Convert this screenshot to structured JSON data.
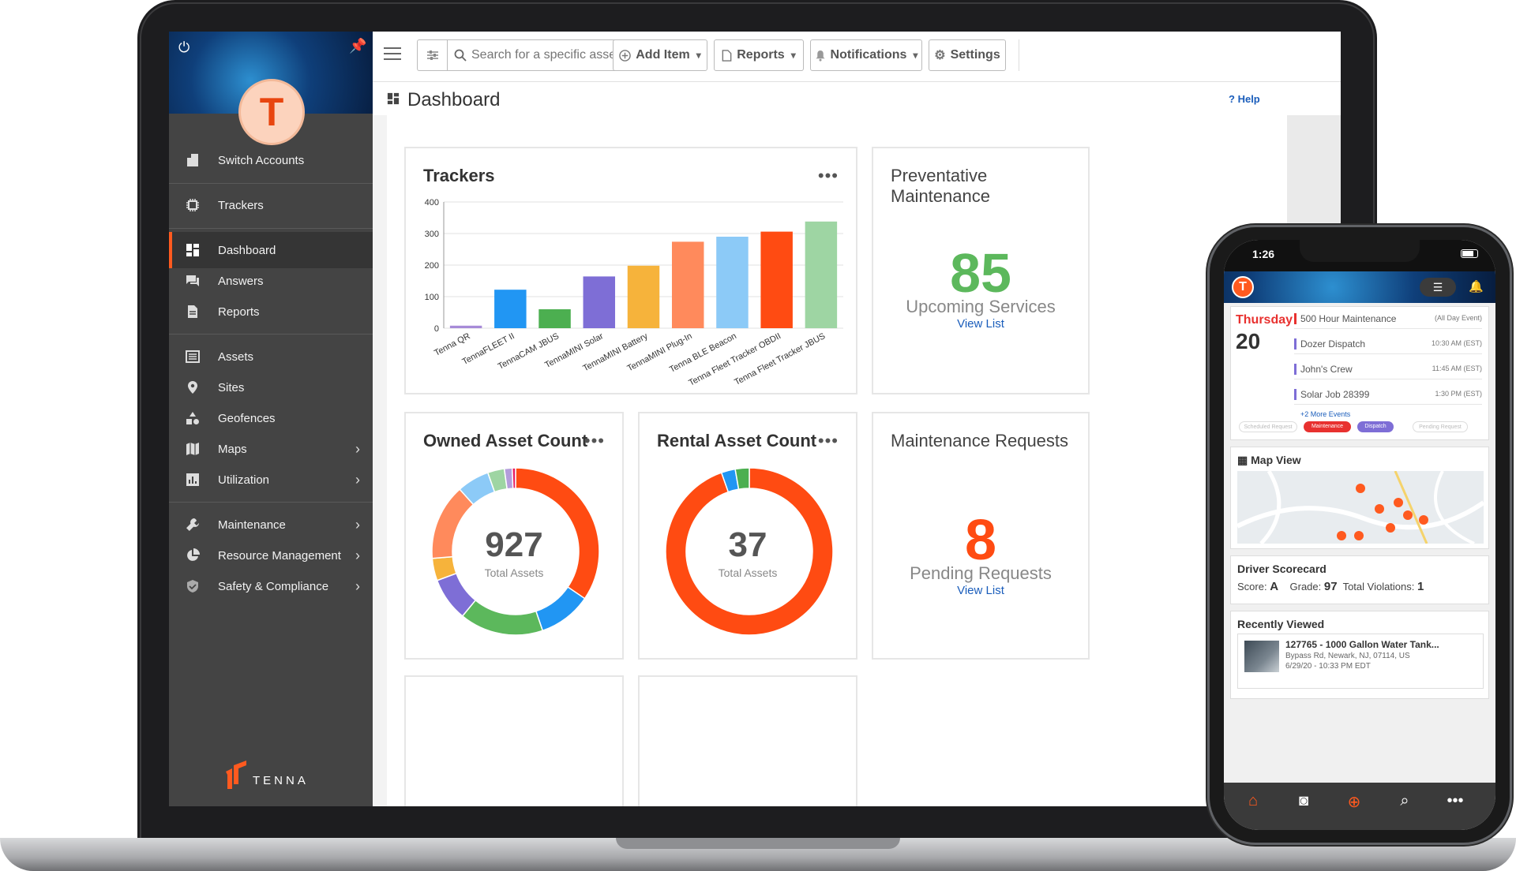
{
  "sidebar": {
    "avatar_letter": "T",
    "items": [
      {
        "label": "Switch Accounts"
      },
      {
        "label": "Trackers"
      },
      {
        "label": "Dashboard"
      },
      {
        "label": "Answers"
      },
      {
        "label": "Reports"
      },
      {
        "label": "Assets"
      },
      {
        "label": "Sites"
      },
      {
        "label": "Geofences"
      },
      {
        "label": "Maps"
      },
      {
        "label": "Utilization"
      },
      {
        "label": "Maintenance"
      },
      {
        "label": "Resource Management"
      },
      {
        "label": "Safety & Compliance"
      }
    ],
    "brand": "TENNA"
  },
  "toolbar": {
    "search_placeholder": "Search for a specific asset, site",
    "add_item": "Add Item",
    "reports": "Reports",
    "notifications": "Notifications",
    "settings": "Settings"
  },
  "page": {
    "title": "Dashboard",
    "help": "Help"
  },
  "cards": {
    "trackers": {
      "title": "Trackers"
    },
    "preventative": {
      "title": "Preventative Maintenance",
      "value": "85",
      "label": "Upcoming Services",
      "link": "View List"
    },
    "owned": {
      "title": "Owned Asset Count",
      "value": "927",
      "label": "Total Assets"
    },
    "rental": {
      "title": "Rental Asset Count",
      "value": "37",
      "label": "Total Assets"
    },
    "maint_requests": {
      "title": "Maintenance Requests",
      "value": "8",
      "label": "Pending Requests",
      "link": "View List"
    },
    "menu_dots": "•••"
  },
  "colors": {
    "accent": "#ff5a1f",
    "green": "#5cb85c",
    "link": "#1a5dbb"
  },
  "chart_data": [
    {
      "type": "bar",
      "title": "Trackers",
      "categories": [
        "Tenna QR",
        "TennaFLEET II",
        "TennaCAM JBUS",
        "TennaMINI Solar",
        "TennaMINI Battery",
        "TennaMINI Plug-In",
        "Tenna BLE Beacon",
        "Tenna Fleet Tracker OBDII",
        "Tenna Fleet Tracker JBUS"
      ],
      "values": [
        8,
        122,
        60,
        164,
        198,
        274,
        290,
        306,
        338
      ],
      "colors": [
        "#a78bd8",
        "#2196f3",
        "#4caf50",
        "#7e6ed6",
        "#f6b33b",
        "#ff8a5c",
        "#8ccaf7",
        "#ff4b12",
        "#9ed5a3"
      ],
      "ylim": [
        0,
        400
      ],
      "yticks": [
        0,
        100,
        200,
        300,
        400
      ],
      "grid": true
    },
    {
      "type": "pie",
      "title": "Owned Asset Count",
      "center_value": "927",
      "center_label": "Total Assets",
      "slices": [
        {
          "value": 320,
          "color": "#ff4b12"
        },
        {
          "value": 95,
          "color": "#2196f3"
        },
        {
          "value": 150,
          "color": "#5cb85c"
        },
        {
          "value": 78,
          "color": "#7e6ed6"
        },
        {
          "value": 40,
          "color": "#f6b33b"
        },
        {
          "value": 136,
          "color": "#ff8a5c"
        },
        {
          "value": 58,
          "color": "#8ccaf7"
        },
        {
          "value": 30,
          "color": "#9ed5a3"
        },
        {
          "value": 14,
          "color": "#b39ddb"
        },
        {
          "value": 6,
          "color": "#e91e63"
        }
      ]
    },
    {
      "type": "pie",
      "title": "Rental Asset Count",
      "center_value": "37",
      "center_label": "Total Assets",
      "slices": [
        {
          "value": 35,
          "color": "#ff4b12"
        },
        {
          "value": 1,
          "color": "#2196f3"
        },
        {
          "value": 1,
          "color": "#4caf50"
        }
      ]
    }
  ],
  "phone": {
    "time": "1:26",
    "avatar_letter": "T",
    "calendar": {
      "day": "Thursday",
      "date": "20",
      "events": [
        {
          "name": "500 Hour Maintenance",
          "time": "(All Day Event)",
          "color": "#e8312f"
        },
        {
          "name": "Dozer Dispatch",
          "time": "10:30 AM (EST)",
          "color": "#7e6ed6"
        },
        {
          "name": "John's Crew",
          "time": "11:45 AM (EST)",
          "color": "#7e6ed6"
        },
        {
          "name": "Solar Job 28399",
          "time": "1:30 PM (EST)",
          "color": "#7e6ed6"
        }
      ],
      "more": "+2 More Events",
      "pills": [
        "Scheduled Request",
        "Maintenance",
        "Dispatch",
        "Pending Request"
      ]
    },
    "map_title": "Map View",
    "scorecard": {
      "title": "Driver Scorecard",
      "score_label": "Score:",
      "score": "A",
      "grade_label": "Grade:",
      "grade": "97",
      "violations_label": "Total Violations:",
      "violations": "1"
    },
    "recent": {
      "title": "Recently Viewed",
      "item_title": "127765 - 1000 Gallon Water Tank...",
      "item_address": "Bypass Rd, Newark, NJ, 07114, US",
      "item_time": "6/29/20 - 10:33 PM EDT"
    }
  }
}
